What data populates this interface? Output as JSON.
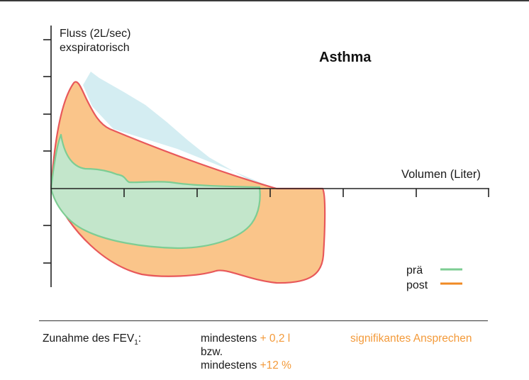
{
  "title": "Asthma",
  "y_axis_label_line1": "Fluss (2L/sec)",
  "y_axis_label_line2": "exspiratorisch",
  "x_axis_label": "Volumen (Liter)",
  "legend": {
    "pre_label": "prä",
    "post_label": "post"
  },
  "colors": {
    "pre_line": "#7dcd93",
    "pre_fill": "#c3e6cb",
    "post_line": "#e8585a",
    "post_fill": "#fac58a",
    "predicted_fill": "#d4edf2",
    "legend_post": "#f08a24",
    "highlight_text": "#f39a3a"
  },
  "footer": {
    "label_main": "Zunahme des FEV",
    "label_sub": "1",
    "label_colon": ":",
    "line1_prefix": "mindestens",
    "line1_value": "+ 0,2 l",
    "line2": "bzw.",
    "line3_prefix": "mindestens",
    "line3_value": "+12 %",
    "conclusion": "signifikantes Ansprechen"
  }
}
